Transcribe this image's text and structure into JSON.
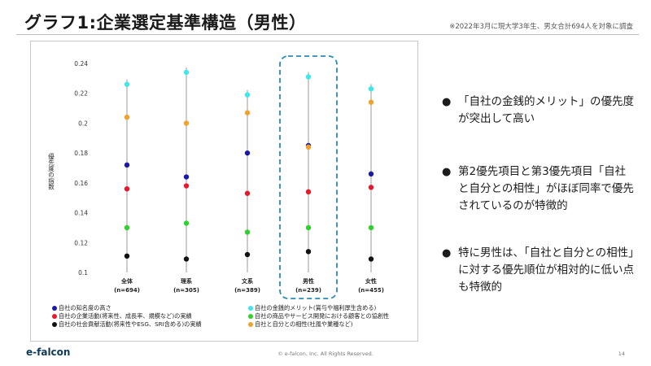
{
  "header": {
    "title": "グラフ1:企業選定基準構造（男性）",
    "note": "※2022年3月に現大学3年生、男女合計694人を対象に調査"
  },
  "bullets": [
    "「自社の金銭的メリット」の優先度が突出して高い",
    "第2優先項目と第3優先項目「自社と自分との相性」がほぼ同率で優先されているのが特徴的",
    "特に男性は、「自社と自分との相性」に対する優先順位が相対的に低い点も特徴的"
  ],
  "footer": {
    "brand": "e-falcon",
    "copyright": "© e-falcon, Inc. All Rights Reserved.",
    "page": "14"
  },
  "colors": {
    "highlight_border": "#2a8bb6",
    "accent": "#0f3a56"
  },
  "chart_data": {
    "type": "scatter",
    "ylabel": "優先度の指数",
    "ylim": [
      0.1,
      0.24
    ],
    "yticks": [
      "0.1",
      "0.12",
      "0.14",
      "0.16",
      "0.18",
      "0.2",
      "0.22",
      "0.24"
    ],
    "categories": [
      "全体",
      "理系",
      "文系",
      "男性",
      "女性"
    ],
    "category_counts": [
      "(n=694)",
      "(n=305)",
      "(n=389)",
      "(n=239)",
      "(n=455)"
    ],
    "highlighted_category": "男性",
    "series": [
      {
        "name": "自社の知名度の高さ",
        "color": "#1a1aa8",
        "values": [
          0.172,
          0.164,
          0.18,
          0.185,
          0.166
        ]
      },
      {
        "name": "自社の金銭的メリット(賞与や福利厚生含める)",
        "color": "#3ee6ee",
        "values": [
          0.226,
          0.234,
          0.219,
          0.231,
          0.223
        ]
      },
      {
        "name": "自社の企業活動(将来性、成長率、規模など)の実績",
        "color": "#e8192c",
        "values": [
          0.156,
          0.158,
          0.153,
          0.154,
          0.157
        ]
      },
      {
        "name": "自社の商品やサービス開発における顧客との協創性",
        "color": "#2ed12e",
        "values": [
          0.13,
          0.133,
          0.127,
          0.13,
          0.13
        ]
      },
      {
        "name": "自社の社会貢献活動(将来性やESG、SRI含める)の実績",
        "color": "#111111",
        "values": [
          0.111,
          0.109,
          0.112,
          0.114,
          0.109
        ]
      },
      {
        "name": "自社と自分との相性(社風や業種など)",
        "color": "#f2a22a",
        "values": [
          0.204,
          0.2,
          0.207,
          0.184,
          0.214
        ]
      }
    ]
  }
}
